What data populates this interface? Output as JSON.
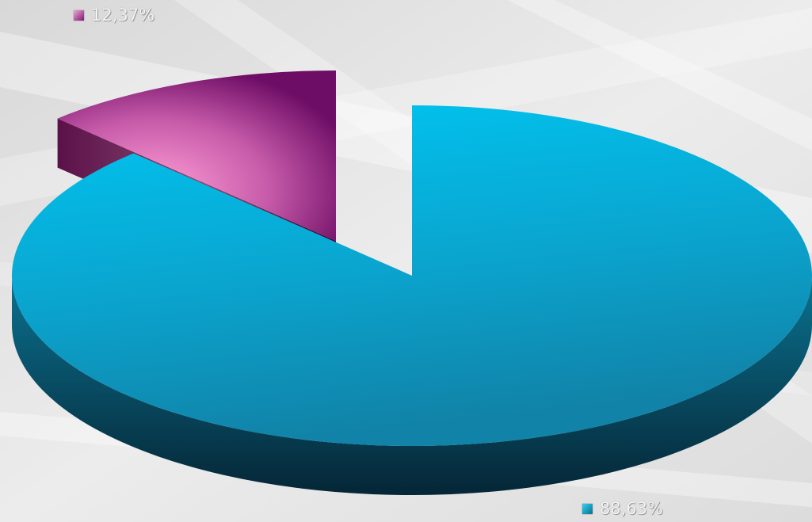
{
  "chart_data": {
    "type": "pie",
    "style": "3d-exploded",
    "title": "",
    "legend": "none",
    "slices": [
      {
        "value": 88.63,
        "label": "88,63%",
        "color": "#00b4de"
      },
      {
        "value": 12.37,
        "label": "12,37%",
        "color": "#cc5aa8"
      }
    ]
  }
}
